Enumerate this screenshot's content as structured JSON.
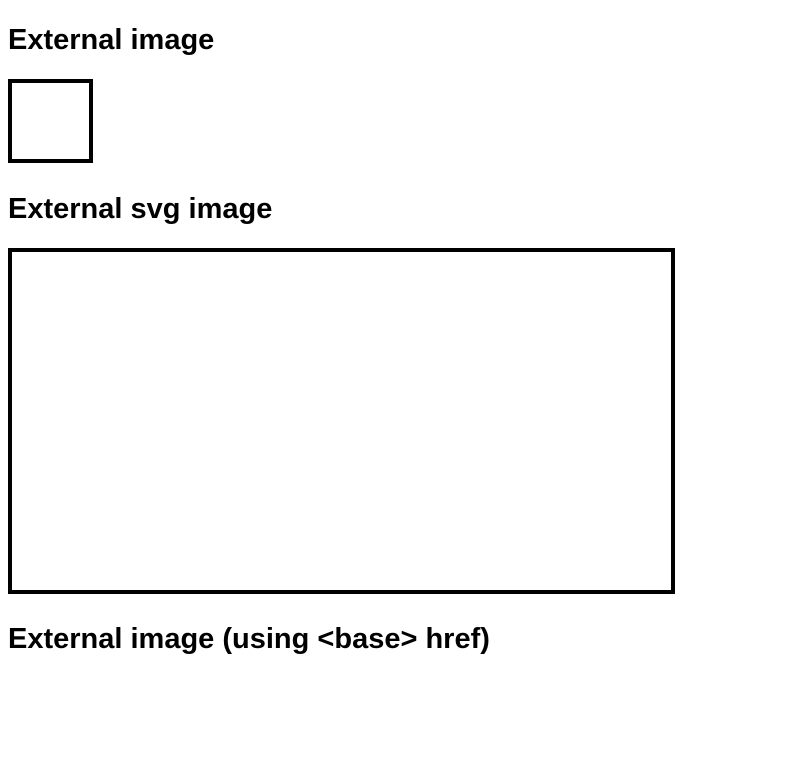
{
  "sections": [
    {
      "heading": "External image"
    },
    {
      "heading": "External svg image"
    },
    {
      "heading": "External image (using <base> href)"
    }
  ]
}
